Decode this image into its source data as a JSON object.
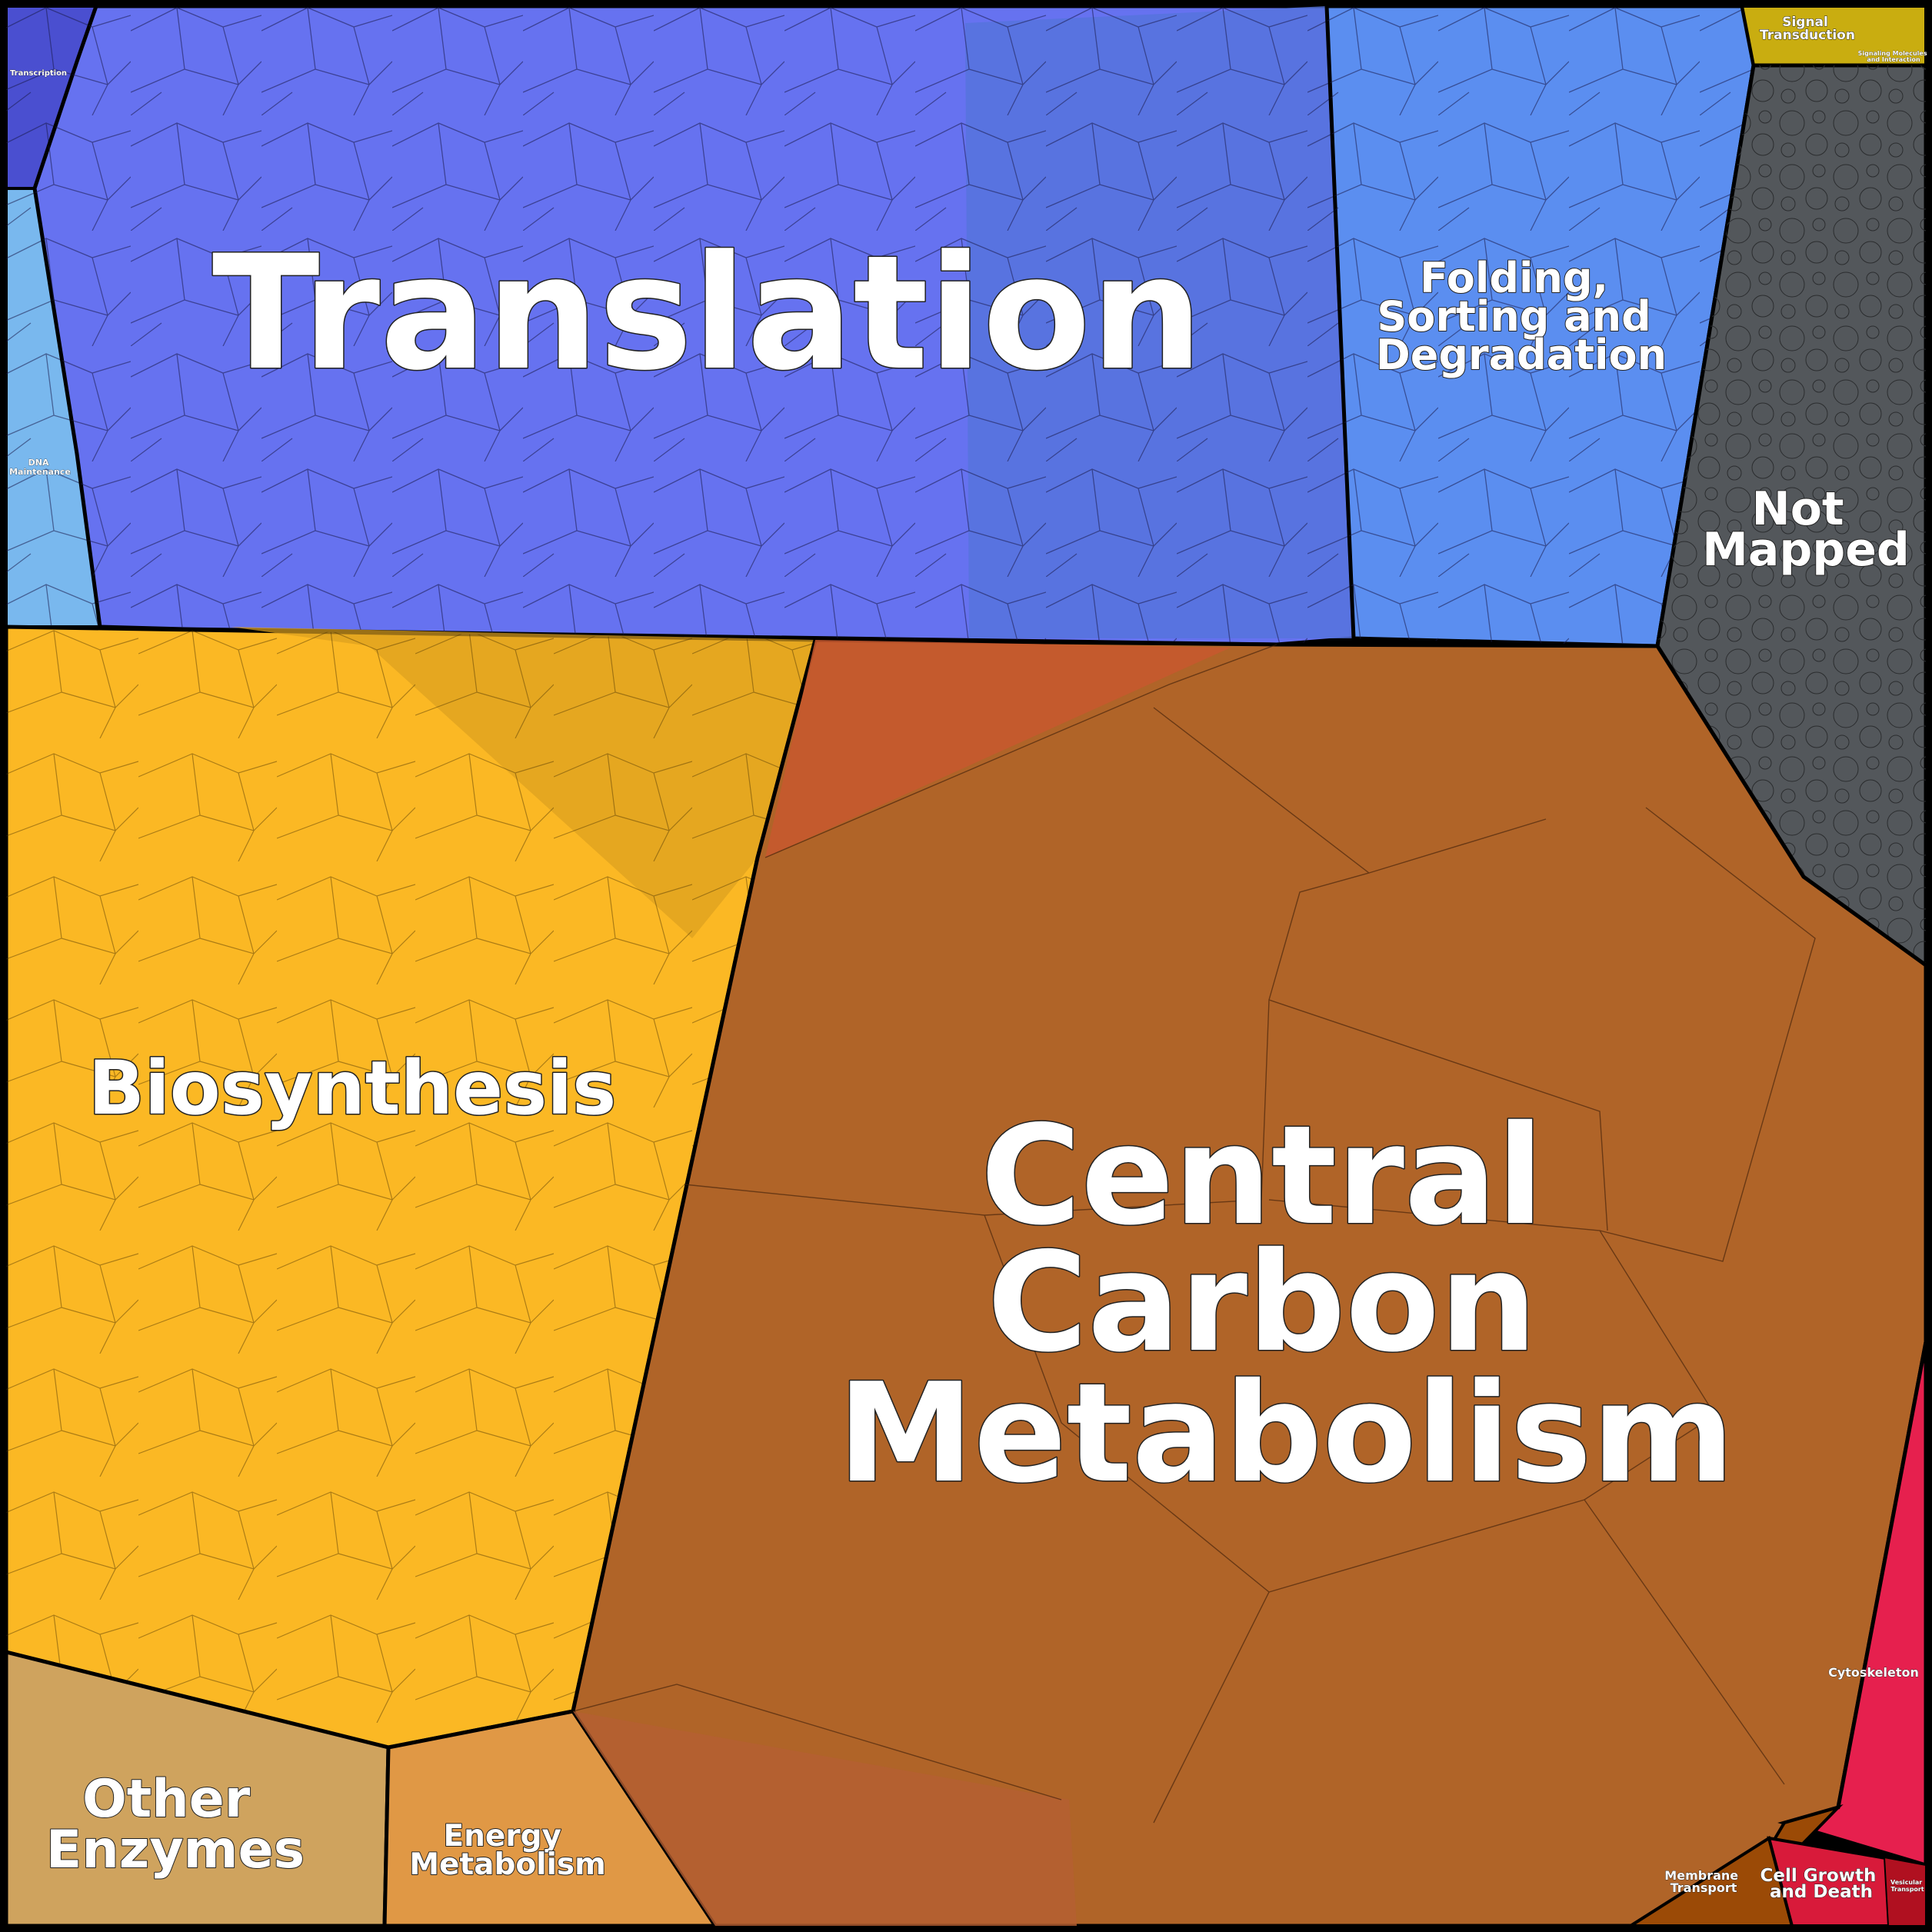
{
  "regions": [
    {
      "id": "translation",
      "lines": [
        "Translation"
      ],
      "color": "#6672f0"
    },
    {
      "id": "folding",
      "lines": [
        "Folding,",
        "Sorting and",
        "Degradation"
      ],
      "color": "#5b8ef0"
    },
    {
      "id": "signal",
      "lines": [
        "Signal",
        "Transduction"
      ],
      "color": "#c9ad10"
    },
    {
      "id": "signaling-molecules",
      "lines": [
        "Signaling Molecules",
        "and Interaction"
      ],
      "color": "#c9ad10"
    },
    {
      "id": "transcription",
      "lines": [
        "Transcription"
      ],
      "color": "#4a4fd0"
    },
    {
      "id": "dna",
      "lines": [
        "DNA",
        "Maintenance"
      ],
      "color": "#79b8ee"
    },
    {
      "id": "not-mapped",
      "lines": [
        "Not",
        "Mapped"
      ],
      "color": "#53575b"
    },
    {
      "id": "biosynthesis",
      "lines": [
        "Biosynthesis"
      ],
      "color": "#fbb824"
    },
    {
      "id": "central",
      "lines": [
        "Central",
        "Carbon",
        "Metabolism"
      ],
      "color": "#b06428"
    },
    {
      "id": "other-enzymes",
      "lines": [
        "Other",
        "Enzymes"
      ],
      "color": "#cfa35e"
    },
    {
      "id": "energy",
      "lines": [
        "Energy",
        "Metabolism"
      ],
      "color": "#e09845"
    },
    {
      "id": "cytoskeleton",
      "lines": [
        "Cytoskeleton"
      ],
      "color": "#e6204e"
    },
    {
      "id": "membrane",
      "lines": [
        "Membrane",
        "Transport"
      ],
      "color": "#9b4a06"
    },
    {
      "id": "cell-growth",
      "lines": [
        "Cell Growth",
        "and Death"
      ],
      "color": "#d81a3a"
    },
    {
      "id": "vesicular",
      "lines": [
        "Vesicular",
        "Transport"
      ],
      "color": "#b01020"
    }
  ]
}
